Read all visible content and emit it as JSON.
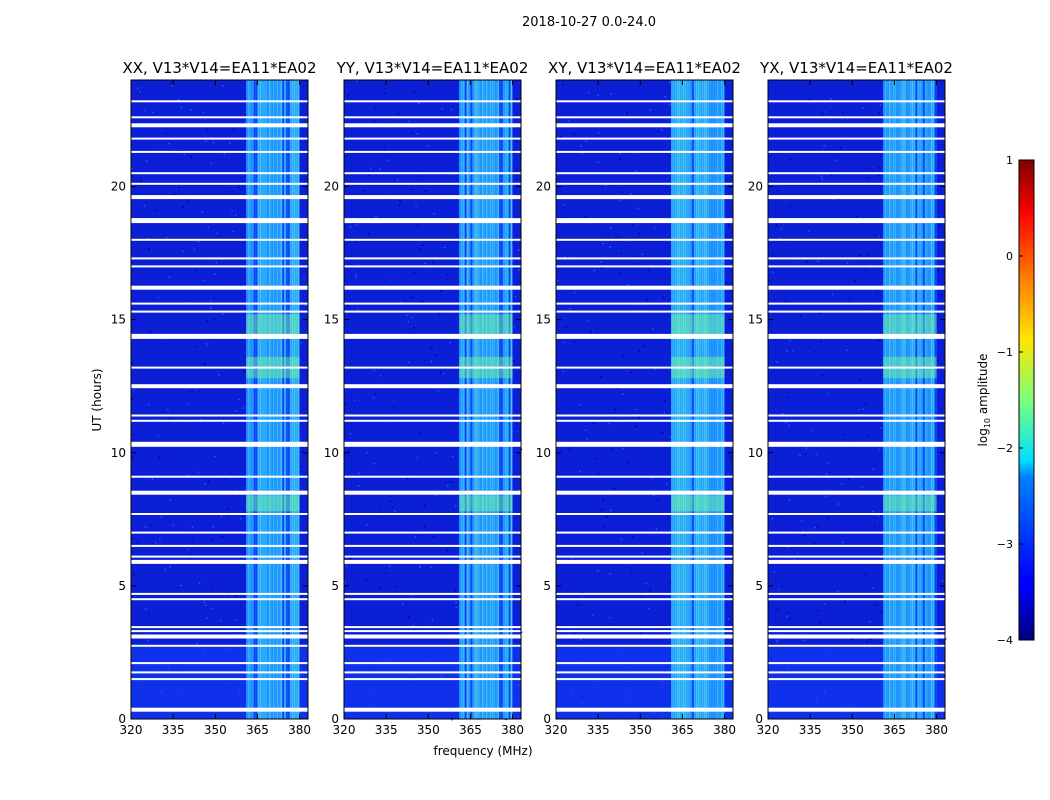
{
  "chart_data": {
    "type": "heatmap",
    "suptitle": "2018-10-27 0.0-24.0",
    "xlabel": "frequency (MHz)",
    "ylabel": "UT (hours)",
    "xlim": [
      320,
      383
    ],
    "ylim": [
      0,
      24
    ],
    "xticks": [
      320,
      335,
      350,
      365,
      380
    ],
    "yticks": [
      0,
      5,
      10,
      15,
      20
    ],
    "panels": [
      {
        "title": "XX, V13*V14=EA11*EA02"
      },
      {
        "title": "YY, V13*V14=EA11*EA02"
      },
      {
        "title": "XY, V13*V14=EA11*EA02"
      },
      {
        "title": "YX, V13*V14=EA11*EA02"
      }
    ],
    "rfi_band_mhz": [
      361,
      380
    ],
    "flagged_hours": [
      0.35,
      1.5,
      1.75,
      2.1,
      2.75,
      3.1,
      3.3,
      3.45,
      4.5,
      4.7,
      5.9,
      6.1,
      6.5,
      7.0,
      7.7,
      8.5,
      9.1,
      10.3,
      11.2,
      11.4,
      12.5,
      13.2,
      14.4,
      15.3,
      15.6,
      16.2,
      17.0,
      17.3,
      18.0,
      18.7,
      19.6,
      20.1,
      20.5,
      21.3,
      21.8,
      22.3,
      22.6,
      23.2
    ],
    "colorbar": {
      "label": "log10 amplitude",
      "label_main": "log",
      "label_sub": "10",
      "label_rest": " amplitude",
      "min": -4,
      "max": 1,
      "ticks": [
        "1",
        "0",
        "−1",
        "−2",
        "−3",
        "−4"
      ],
      "tick_values": [
        1,
        0,
        -1,
        -2,
        -3,
        -4
      ]
    }
  }
}
